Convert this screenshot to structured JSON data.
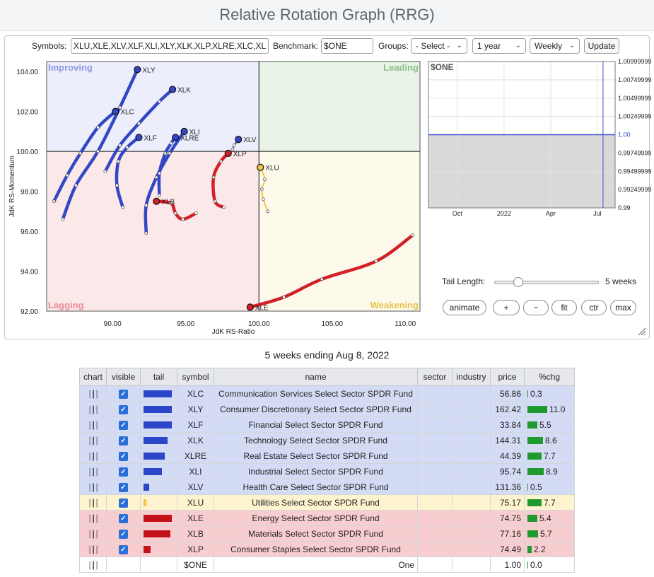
{
  "title": "Relative Rotation Graph (RRG)",
  "toolbar": {
    "symbols_label": "Symbols:",
    "symbols_value": "XLU,XLE,XLV,XLF,XLI,XLY,XLK,XLP,XLRE,XLC,XLB",
    "benchmark_label": "Benchmark:",
    "benchmark_value": "$ONE",
    "groups_label": "Groups:",
    "groups_value": "- Select -",
    "period_value": "1 year",
    "frequency_value": "Weekly",
    "update_label": "Update"
  },
  "chart_data": [
    {
      "type": "scatter",
      "title": "",
      "xlabel": "JdK RS-Ratio",
      "ylabel": "JdK RS-Momentum",
      "xlim": [
        85.5,
        111
      ],
      "ylim": [
        92,
        104.5
      ],
      "xticks": [
        "90.00",
        "95.00",
        "100.00",
        "105.00",
        "110.00"
      ],
      "yticks": [
        "92.00",
        "94.00",
        "96.00",
        "98.00",
        "100.00",
        "102.00",
        "104.00"
      ],
      "quadrants": {
        "improving": "Improving",
        "leading": "Leading",
        "lagging": "Lagging",
        "weakening": "Weakening"
      },
      "series": [
        {
          "name": "XLY",
          "color": "#3347c6",
          "points": [
            [
              86.6,
              96.6
            ],
            [
              87.5,
              98.3
            ],
            [
              89.0,
              100.0
            ],
            [
              90.5,
              102.2
            ],
            [
              91.7,
              104.1
            ]
          ]
        },
        {
          "name": "XLK",
          "color": "#3347c6",
          "points": [
            [
              89.5,
              99.0
            ],
            [
              90.5,
              100.3
            ],
            [
              91.8,
              101.4
            ],
            [
              93.2,
              102.5
            ],
            [
              94.1,
              103.1
            ]
          ]
        },
        {
          "name": "XLC",
          "color": "#3347c6",
          "points": [
            [
              86.0,
              97.5
            ],
            [
              86.9,
              98.8
            ],
            [
              87.8,
              99.9
            ],
            [
              89.0,
              101.2
            ],
            [
              90.2,
              102.0
            ]
          ]
        },
        {
          "name": "XLF",
          "color": "#3347c6",
          "points": [
            [
              90.7,
              97.2
            ],
            [
              90.3,
              98.3
            ],
            [
              90.4,
              99.5
            ],
            [
              91.0,
              100.2
            ],
            [
              91.8,
              100.7
            ]
          ]
        },
        {
          "name": "XLI",
          "color": "#3347c6",
          "points": [
            [
              92.3,
              95.9
            ],
            [
              92.3,
              97.3
            ],
            [
              93.0,
              98.7
            ],
            [
              93.9,
              99.9
            ],
            [
              94.9,
              101.0
            ]
          ]
        },
        {
          "name": "XLRE",
          "color": "#3347c6",
          "points": [
            [
              93.2,
              97.8
            ],
            [
              93.2,
              98.9
            ],
            [
              93.6,
              99.9
            ],
            [
              94.0,
              100.4
            ],
            [
              94.3,
              100.7
            ]
          ]
        },
        {
          "name": "XLV",
          "color": "#3347c6",
          "points": [
            [
              98.2,
              100.1
            ],
            [
              98.3,
              100.3
            ],
            [
              98.5,
              100.5
            ],
            [
              98.6,
              100.6
            ]
          ]
        },
        {
          "name": "XLU",
          "color": "#f5c542",
          "points": [
            [
              100.6,
              97.0
            ],
            [
              100.3,
              97.6
            ],
            [
              100.2,
              98.1
            ],
            [
              100.4,
              98.6
            ],
            [
              100.1,
              99.2
            ]
          ]
        },
        {
          "name": "XLE",
          "color": "#d32027",
          "points": [
            [
              110.5,
              95.8
            ],
            [
              108.0,
              94.5
            ],
            [
              104.3,
              93.6
            ],
            [
              101.7,
              92.7
            ],
            [
              99.4,
              92.2
            ]
          ]
        },
        {
          "name": "XLB",
          "color": "#d32027",
          "points": [
            [
              95.7,
              96.9
            ],
            [
              94.8,
              96.6
            ],
            [
              94.3,
              96.9
            ],
            [
              94.0,
              97.4
            ],
            [
              93.0,
              97.5
            ]
          ]
        },
        {
          "name": "XLP",
          "color": "#d32027",
          "points": [
            [
              97.6,
              97.2
            ],
            [
              97.0,
              97.5
            ],
            [
              96.9,
              98.7
            ],
            [
              97.4,
              99.5
            ],
            [
              97.9,
              99.9
            ]
          ]
        }
      ]
    },
    {
      "type": "line",
      "title": "$ONE",
      "x_ticks": [
        "Oct",
        "2022",
        "Apr",
        "Jul"
      ],
      "yticks": [
        "1.00999999",
        "1.00749999",
        "1.00499999",
        "1.00249999",
        "1.00",
        "0.99749999",
        "0.99499999",
        "0.99249999",
        "0.99"
      ],
      "ylim": [
        0.99,
        1.01
      ],
      "series": [
        {
          "values": [
            1.0,
            1.0
          ]
        }
      ]
    }
  ],
  "controls": {
    "tail_length_label": "Tail Length:",
    "tail_value_text": "5 weeks",
    "tail_fraction": 0.2,
    "buttons": [
      "animate",
      "+",
      "−",
      "fit",
      "ctr",
      "max"
    ]
  },
  "caption": "5 weeks ending Aug 8, 2022",
  "table": {
    "headers": [
      "chart",
      "visible",
      "tail",
      "symbol",
      "name",
      "sector",
      "industry",
      "price",
      "%chg"
    ],
    "rows": [
      {
        "symbol": "XLC",
        "name": "Communication Services Select Sector SPDR Fund",
        "price": "56.86",
        "chg": "0.3",
        "chg_value": 0.3,
        "tail_color": "#2b46c9",
        "tail_weeks": 5,
        "row_color": "blue"
      },
      {
        "symbol": "XLY",
        "name": "Consumer Discretionary Select Sector SPDR Fund",
        "price": "162.42",
        "chg": "11.0",
        "chg_value": 11.0,
        "tail_color": "#2b46c9",
        "tail_weeks": 5,
        "row_color": "blue"
      },
      {
        "symbol": "XLF",
        "name": "Financial Select Sector SPDR Fund",
        "price": "33.84",
        "chg": "5.5",
        "chg_value": 5.5,
        "tail_color": "#2b46c9",
        "tail_weeks": 5,
        "row_color": "blue"
      },
      {
        "symbol": "XLK",
        "name": "Technology Select Sector SPDR Fund",
        "price": "144.31",
        "chg": "8.6",
        "chg_value": 8.6,
        "tail_color": "#2b46c9",
        "tail_weeks": 4.3,
        "row_color": "blue"
      },
      {
        "symbol": "XLRE",
        "name": "Real Estate Select Sector SPDR Fund",
        "price": "44.39",
        "chg": "7.7",
        "chg_value": 7.7,
        "tail_color": "#2b46c9",
        "tail_weeks": 3.7,
        "row_color": "blue"
      },
      {
        "symbol": "XLI",
        "name": "Industrial Select Sector SPDR Fund",
        "price": "95.74",
        "chg": "8.9",
        "chg_value": 8.9,
        "tail_color": "#2b46c9",
        "tail_weeks": 3.3,
        "row_color": "blue"
      },
      {
        "symbol": "XLV",
        "name": "Health Care Select Sector SPDR Fund",
        "price": "131.36",
        "chg": "0.5",
        "chg_value": 0.5,
        "tail_color": "#2b46c9",
        "tail_weeks": 1,
        "row_color": "blue"
      },
      {
        "symbol": "XLU",
        "name": "Utilities Select Sector SPDR Fund",
        "price": "75.17",
        "chg": "7.7",
        "chg_value": 7.7,
        "tail_color": "#f5c542",
        "tail_weeks": 0.5,
        "row_color": "yellow"
      },
      {
        "symbol": "XLE",
        "name": "Energy Select Sector SPDR Fund",
        "price": "74.75",
        "chg": "5.4",
        "chg_value": 5.4,
        "tail_color": "#c4121b",
        "tail_weeks": 5,
        "row_color": "red"
      },
      {
        "symbol": "XLB",
        "name": "Materials Select Sector SPDR Fund",
        "price": "77.16",
        "chg": "5.7",
        "chg_value": 5.7,
        "tail_color": "#c4121b",
        "tail_weeks": 4.8,
        "row_color": "red"
      },
      {
        "symbol": "XLP",
        "name": "Consumer Staples Select Sector SPDR Fund",
        "price": "74.49",
        "chg": "2.2",
        "chg_value": 2.2,
        "tail_color": "#c4121b",
        "tail_weeks": 1.3,
        "row_color": "red"
      },
      {
        "symbol": "$ONE",
        "name": "One",
        "price": "1.00",
        "chg": "0.0",
        "chg_value": 0,
        "tail_color": "",
        "tail_weeks": 0,
        "row_color": "white"
      }
    ]
  }
}
